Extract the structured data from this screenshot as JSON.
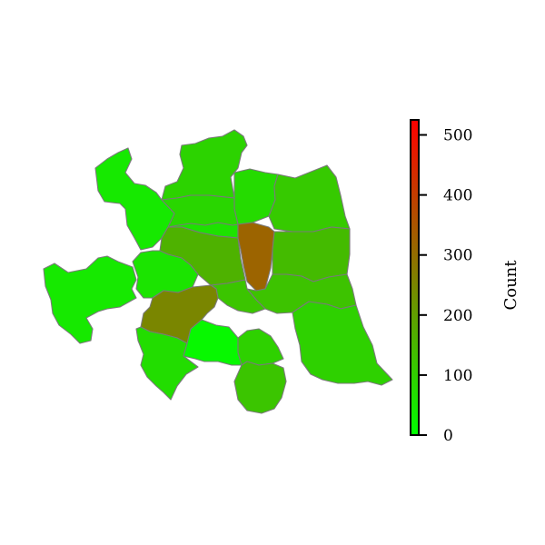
{
  "colorbar": {
    "label": "Count",
    "min": 0,
    "max": 525,
    "ticks": [
      "0",
      "100",
      "200",
      "300",
      "400",
      "500"
    ],
    "tick_values": [
      0,
      100,
      200,
      300,
      400,
      500
    ],
    "colors": {
      "low": "#00ff00",
      "mid": "#808000",
      "high": "#ff0000"
    }
  },
  "map": {
    "border_color": "#7a7a7a",
    "regions": [
      {
        "id": "north-top",
        "value": 90
      },
      {
        "id": "north-center",
        "value": 75
      },
      {
        "id": "north-east-mid",
        "value": 85
      },
      {
        "id": "northwest",
        "value": 45
      },
      {
        "id": "northeast",
        "value": 110
      },
      {
        "id": "center-north",
        "value": 60
      },
      {
        "id": "center",
        "value": 160
      },
      {
        "id": "red-center",
        "value": 320
      },
      {
        "id": "east-center",
        "value": 140
      },
      {
        "id": "west",
        "value": 45
      },
      {
        "id": "center-west",
        "value": 55
      },
      {
        "id": "southeast-upper",
        "value": 125
      },
      {
        "id": "center-south",
        "value": 120
      },
      {
        "id": "south-center-brown",
        "value": 250
      },
      {
        "id": "southwest",
        "value": 70
      },
      {
        "id": "south-bright",
        "value": 15
      },
      {
        "id": "south-mid",
        "value": 95
      },
      {
        "id": "south-lower",
        "value": 120
      },
      {
        "id": "southeast",
        "value": 95
      }
    ]
  }
}
